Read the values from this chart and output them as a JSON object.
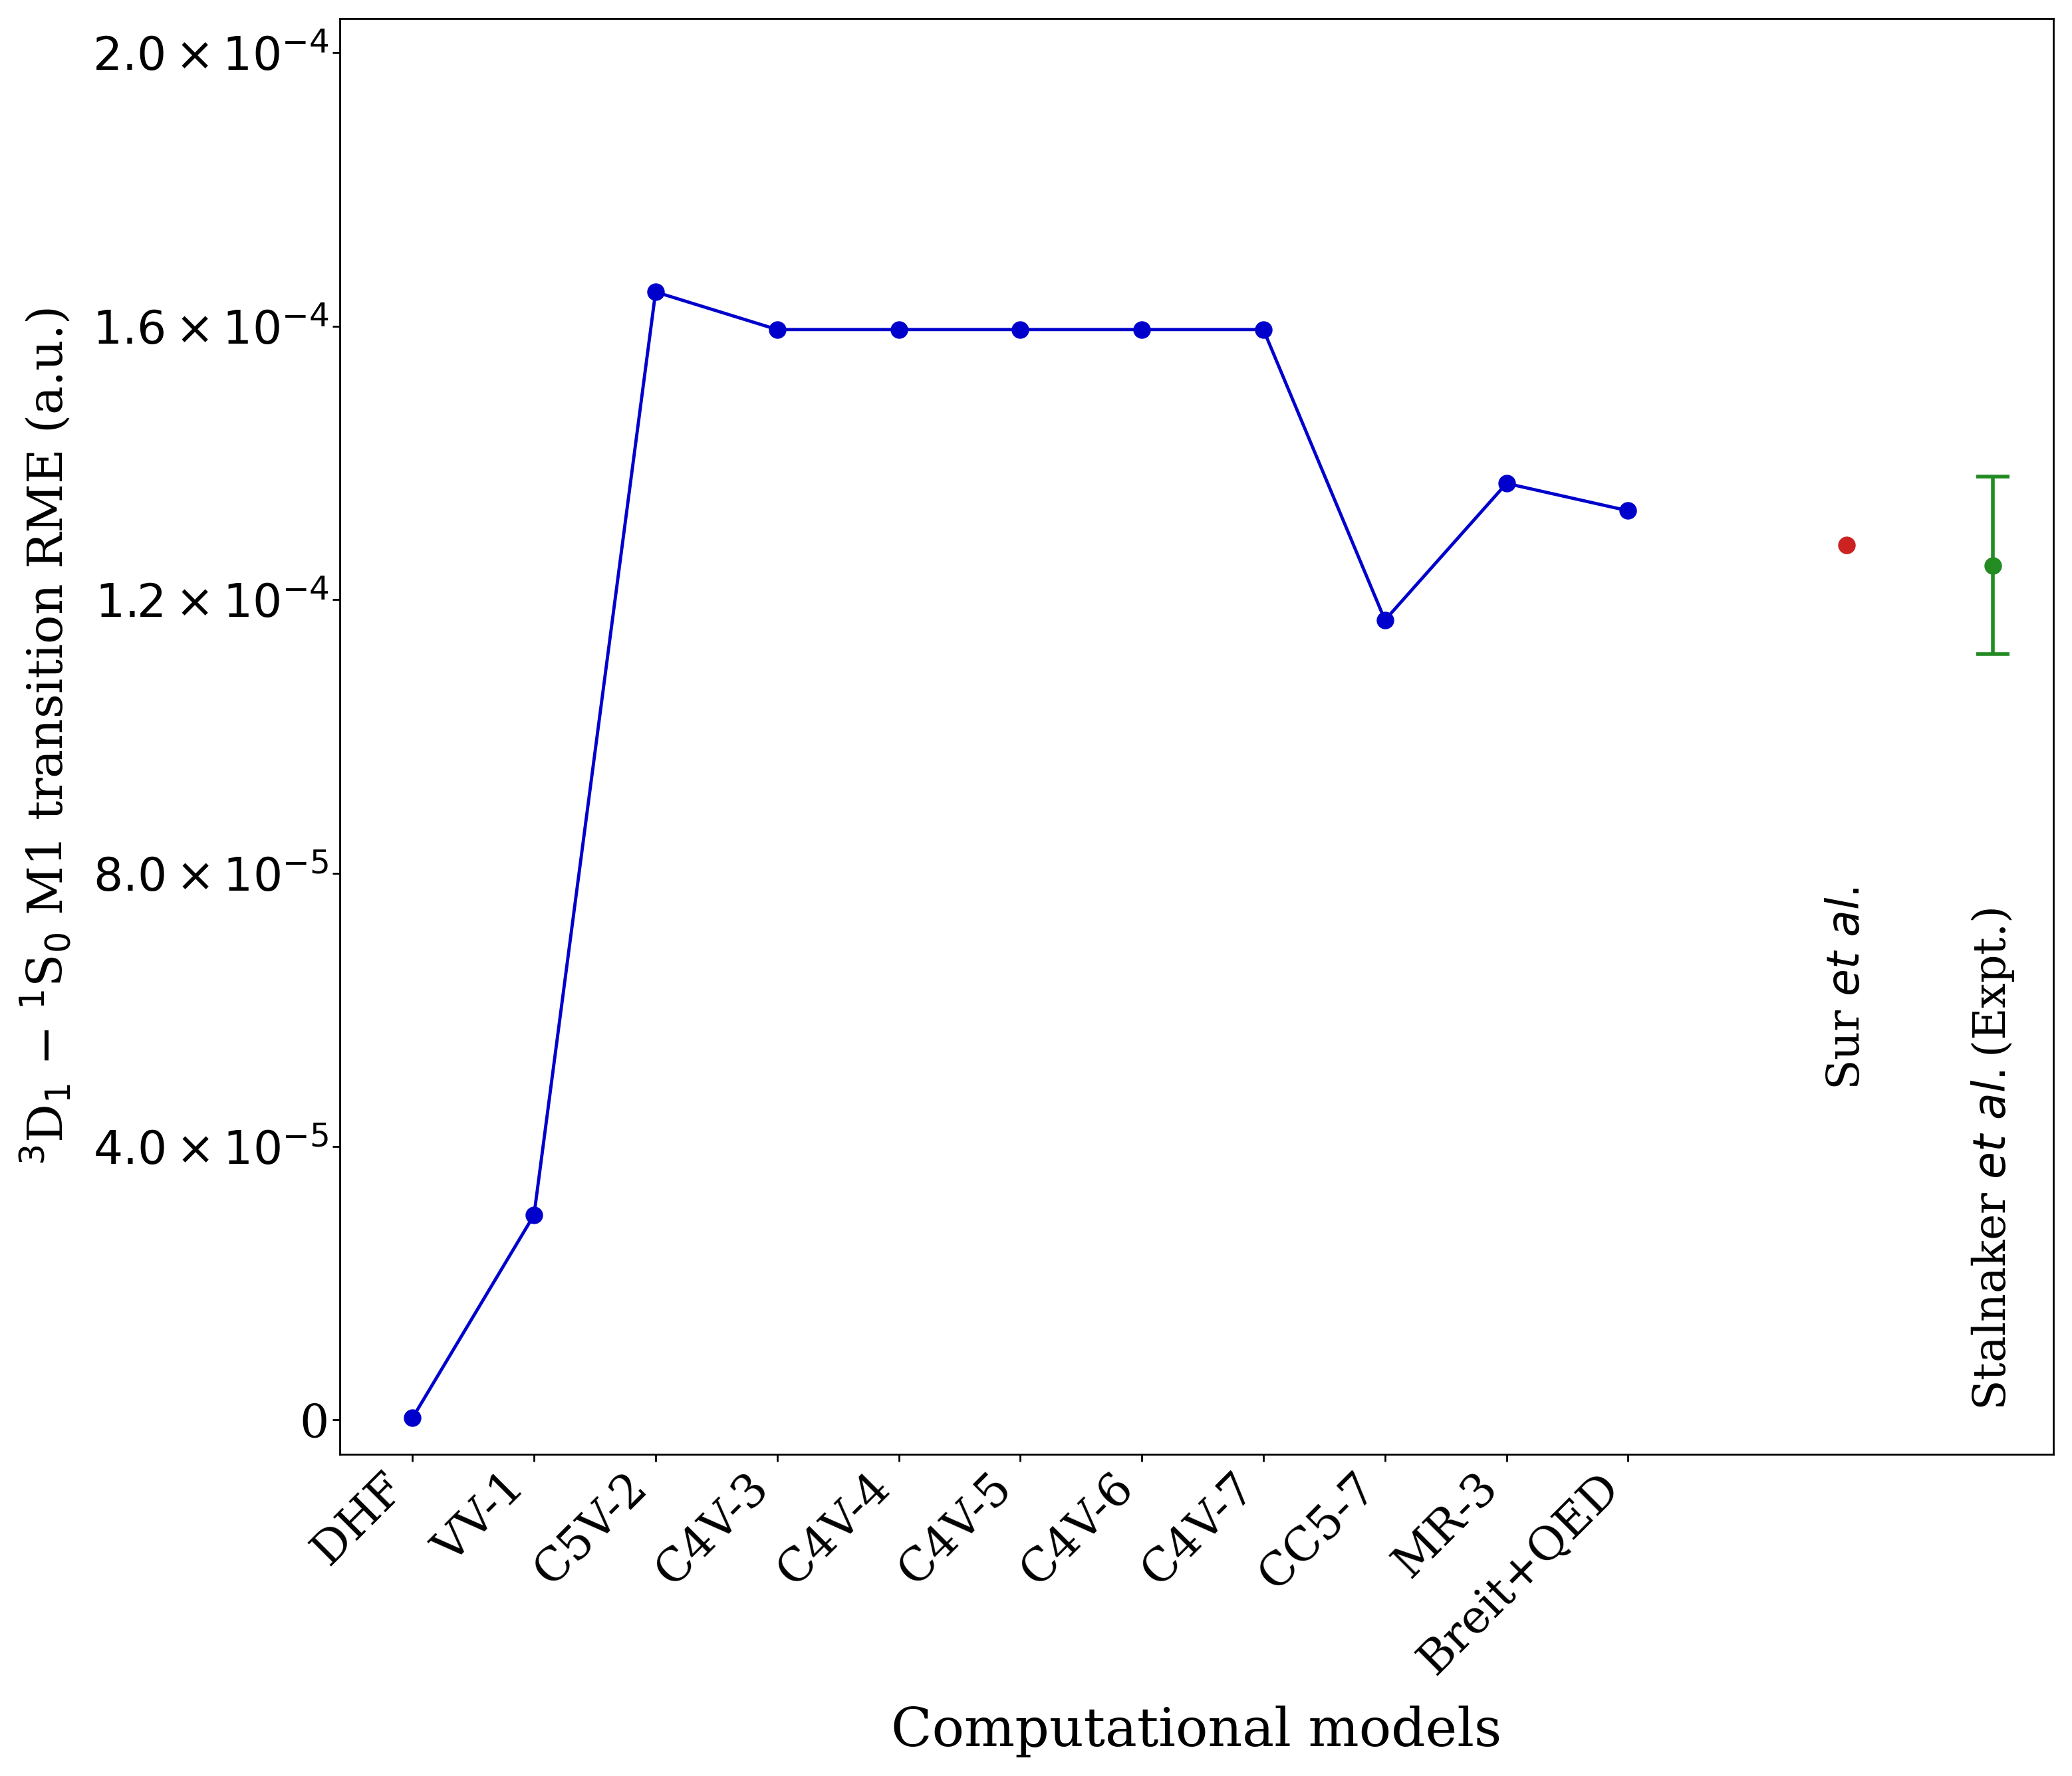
{
  "x_labels": [
    "DHF",
    "VV-1",
    "C5V-2",
    "C4V-3",
    "C4V-4",
    "C4V-5",
    "C4V-6",
    "C4V-7",
    "CC5-7",
    "MR-3",
    "Breit+QED"
  ],
  "y_values": [
    3e-07,
    3e-05,
    0.000165,
    0.0001595,
    0.0001595,
    0.0001595,
    0.0001595,
    0.0001595,
    0.000117,
    0.000137,
    0.000133
  ],
  "line_color": "#0000cc",
  "marker_color": "#0000cc",
  "marker_size": 18,
  "line_width": 3.5,
  "sur_value": 0.000128,
  "sur_color": "#cc2222",
  "stalnaker_value": 0.000125,
  "stalnaker_yerr": 1.3e-05,
  "stalnaker_color": "#228B22",
  "ylabel": "$^3$D$_1$ $-$ $^1$S$_0$ M1 transition RME (a.u.)",
  "xlabel": "Computational models",
  "ylim": [
    -5e-06,
    0.000205
  ],
  "yticks": [
    0,
    4e-05,
    8e-05,
    0.00012,
    0.00016,
    0.0002
  ],
  "background_color": "#ffffff",
  "label_fontsize": 52,
  "tick_fontsize": 50,
  "annotation_fontsize": 48,
  "xlabel_fontsize": 58
}
